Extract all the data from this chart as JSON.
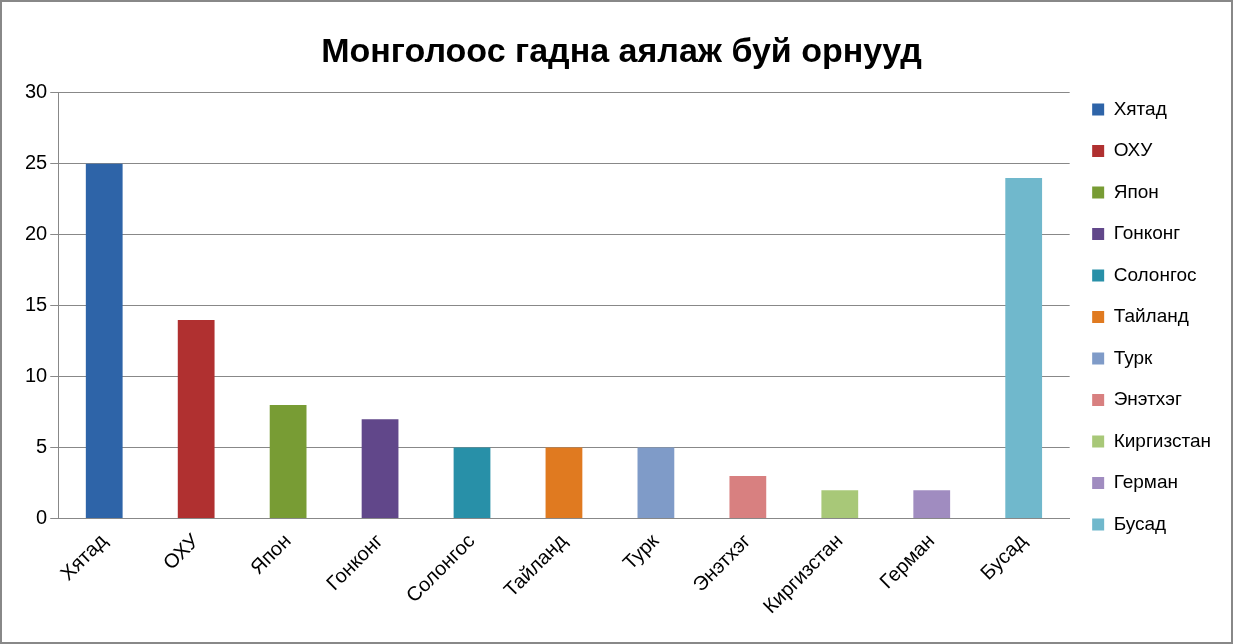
{
  "chart_data": {
    "type": "bar",
    "title": "Монголоос гадна аялаж буй орнууд",
    "categories": [
      "Хятад",
      "ОХУ",
      "Япон",
      "Гонконг",
      "Солонгос",
      "Тайланд",
      "Турк",
      "Энэтхэг",
      "Киргизстан",
      "Герман",
      "Бусад"
    ],
    "series": [
      {
        "name": "Хятад",
        "color": "#2e64a8",
        "values": [
          25,
          null,
          null,
          null,
          null,
          null,
          null,
          null,
          null,
          null,
          null
        ]
      },
      {
        "name": "ОХУ",
        "color": "#b03030",
        "values": [
          null,
          14,
          null,
          null,
          null,
          null,
          null,
          null,
          null,
          null,
          null
        ]
      },
      {
        "name": "Япон",
        "color": "#789c34",
        "values": [
          null,
          null,
          8,
          null,
          null,
          null,
          null,
          null,
          null,
          null,
          null
        ]
      },
      {
        "name": "Гонконг",
        "color": "#61478a",
        "values": [
          null,
          null,
          null,
          7,
          null,
          null,
          null,
          null,
          null,
          null,
          null
        ]
      },
      {
        "name": "Солонгос",
        "color": "#2890a8",
        "values": [
          null,
          null,
          null,
          null,
          5,
          null,
          null,
          null,
          null,
          null,
          null
        ]
      },
      {
        "name": "Тайланд",
        "color": "#e07a20",
        "values": [
          null,
          null,
          null,
          null,
          null,
          5,
          null,
          null,
          null,
          null,
          null
        ]
      },
      {
        "name": "Турк",
        "color": "#7f9bc8",
        "values": [
          null,
          null,
          null,
          null,
          null,
          null,
          5,
          null,
          null,
          null,
          null
        ]
      },
      {
        "name": "Энэтхэг",
        "color": "#d88080",
        "values": [
          null,
          null,
          null,
          null,
          null,
          null,
          null,
          3,
          null,
          null,
          null
        ]
      },
      {
        "name": "Киргизстан",
        "color": "#a8c878",
        "values": [
          null,
          null,
          null,
          null,
          null,
          null,
          null,
          null,
          2,
          null,
          null
        ]
      },
      {
        "name": "Герман",
        "color": "#a08cc0",
        "values": [
          null,
          null,
          null,
          null,
          null,
          null,
          null,
          null,
          null,
          2,
          null
        ]
      },
      {
        "name": "Бусад",
        "color": "#70b8cc",
        "values": [
          null,
          null,
          null,
          null,
          null,
          null,
          null,
          null,
          null,
          null,
          24
        ]
      }
    ],
    "ylim": [
      0,
      30
    ],
    "yticks": [
      0,
      5,
      10,
      15,
      20,
      25,
      30
    ],
    "grid": "y",
    "legend": "right"
  }
}
